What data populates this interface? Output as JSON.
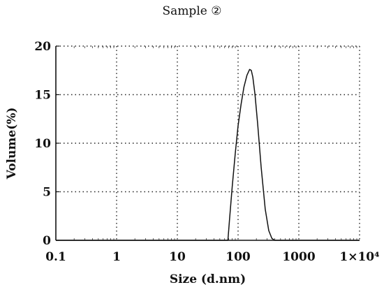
{
  "chart_data": {
    "type": "line",
    "title": "Sample ②",
    "xlabel": "Size (d.nm)",
    "ylabel": "Volume(%)",
    "x_scale": "log",
    "xlim": [
      0.1,
      10000
    ],
    "ylim": [
      0,
      20
    ],
    "x_ticks": [
      0.1,
      1,
      10,
      100,
      1000,
      10000
    ],
    "x_tick_labels": [
      "0.1",
      "1",
      "10",
      "100",
      "1000",
      "1×10⁴"
    ],
    "y_ticks": [
      0,
      5,
      10,
      15,
      20
    ],
    "y_tick_labels": [
      "0",
      "5",
      "10",
      "15",
      "20"
    ],
    "grid": "dotted",
    "legend": "none",
    "series": [
      {
        "color": "#111111",
        "x": [
          0.1,
          68,
          72,
          80,
          90,
          100,
          112,
          125,
          140,
          155,
          165,
          175,
          190,
          210,
          240,
          280,
          320,
          360,
          400,
          10000
        ],
        "y": [
          0,
          0,
          2.0,
          5.5,
          9.0,
          11.8,
          14.0,
          15.8,
          17.0,
          17.6,
          17.5,
          16.8,
          15.0,
          12.0,
          7.5,
          3.2,
          1.0,
          0.2,
          0,
          0
        ]
      }
    ]
  }
}
